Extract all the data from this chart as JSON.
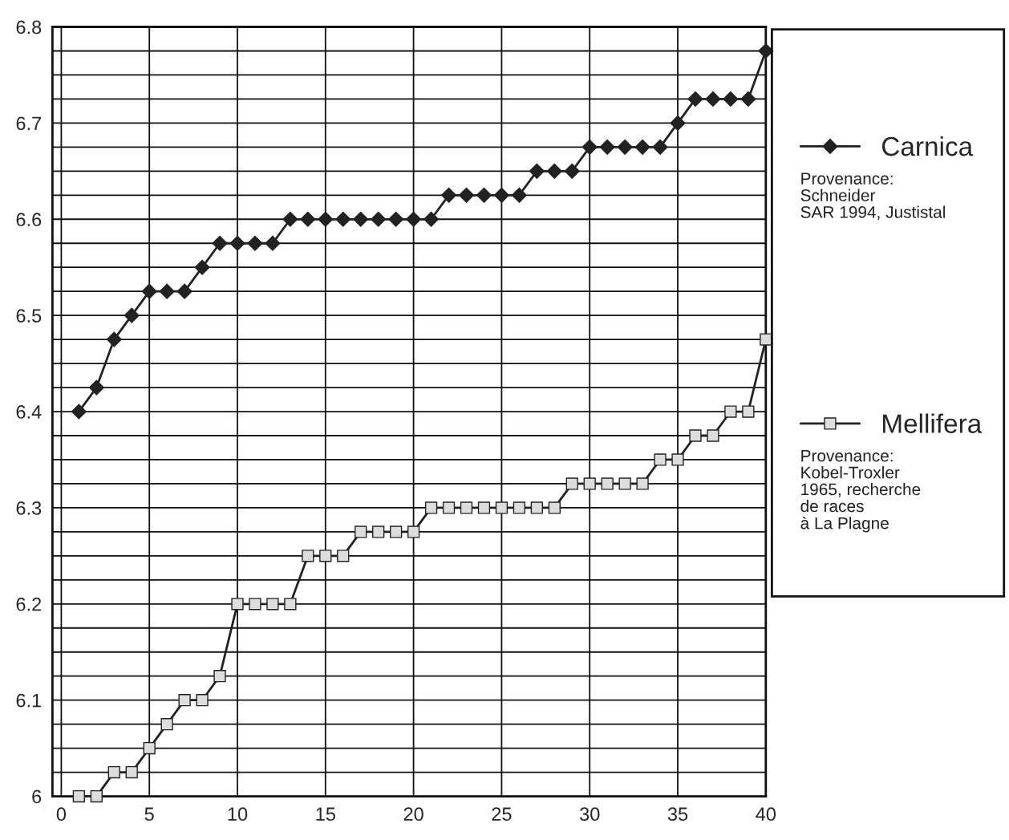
{
  "chart_data": {
    "type": "line",
    "x": [
      1,
      2,
      3,
      4,
      5,
      6,
      7,
      8,
      9,
      10,
      11,
      12,
      13,
      14,
      15,
      16,
      17,
      18,
      19,
      20,
      21,
      22,
      23,
      24,
      25,
      26,
      27,
      28,
      29,
      30,
      31,
      32,
      33,
      34,
      35,
      36,
      37,
      38,
      39,
      40
    ],
    "series": [
      {
        "name": "Carnica",
        "color": "#222222",
        "marker": "diamond",
        "values": [
          6.4,
          6.425,
          6.475,
          6.5,
          6.525,
          6.525,
          6.525,
          6.55,
          6.575,
          6.575,
          6.575,
          6.575,
          6.6,
          6.6,
          6.6,
          6.6,
          6.6,
          6.6,
          6.6,
          6.6,
          6.6,
          6.625,
          6.625,
          6.625,
          6.625,
          6.625,
          6.65,
          6.65,
          6.65,
          6.675,
          6.675,
          6.675,
          6.675,
          6.675,
          6.7,
          6.725,
          6.725,
          6.725,
          6.725,
          6.775
        ]
      },
      {
        "name": "Mellifera",
        "color": "#222222",
        "marker": "square",
        "values": [
          6.0,
          6.0,
          6.025,
          6.025,
          6.05,
          6.075,
          6.1,
          6.1,
          6.125,
          6.2,
          6.2,
          6.2,
          6.2,
          6.25,
          6.25,
          6.25,
          6.275,
          6.275,
          6.275,
          6.275,
          6.3,
          6.3,
          6.3,
          6.3,
          6.3,
          6.3,
          6.3,
          6.3,
          6.325,
          6.325,
          6.325,
          6.325,
          6.325,
          6.35,
          6.35,
          6.375,
          6.375,
          6.4,
          6.4,
          6.475
        ]
      }
    ],
    "annotations": [
      "Provenance:\nSchneider\nSAR 1994, Justistal",
      "Provenance:\nKobel-Troxler\n1965, recherche\nde races\nà La Plagne"
    ],
    "xlim": [
      -0.5,
      40
    ],
    "xticks": [
      0,
      5,
      10,
      15,
      20,
      25,
      30,
      35,
      40
    ],
    "ylim": [
      6,
      6.8
    ],
    "yticks": [
      6,
      {
        "value": 6.025,
        "label": null
      },
      {
        "value": 6.05,
        "label": null
      },
      {
        "value": 6.075,
        "label": null
      },
      6.1,
      {
        "value": 6.125,
        "label": null
      },
      {
        "value": 6.15,
        "label": null
      },
      {
        "value": 6.175,
        "label": null
      },
      6.2,
      {
        "value": 6.225,
        "label": null
      },
      {
        "value": 6.25,
        "label": null
      },
      {
        "value": 6.275,
        "label": null
      },
      6.3,
      {
        "value": 6.325,
        "label": null
      },
      {
        "value": 6.35,
        "label": null
      },
      {
        "value": 6.375,
        "label": null
      },
      6.4,
      {
        "value": 6.425,
        "label": null
      },
      {
        "value": 6.45,
        "label": null
      },
      {
        "value": 6.475,
        "label": null
      },
      6.5,
      {
        "value": 6.525,
        "label": null
      },
      {
        "value": 6.55,
        "label": null
      },
      {
        "value": 6.575,
        "label": null
      },
      6.6,
      {
        "value": 6.625,
        "label": null
      },
      {
        "value": 6.65,
        "label": null
      },
      {
        "value": 6.675,
        "label": null
      },
      6.7,
      {
        "value": 6.725,
        "label": null
      },
      {
        "value": 6.75,
        "label": null
      },
      {
        "value": 6.775,
        "label": null
      },
      6.8
    ],
    "grid": true,
    "legend": "right",
    "line_style": "solid"
  }
}
